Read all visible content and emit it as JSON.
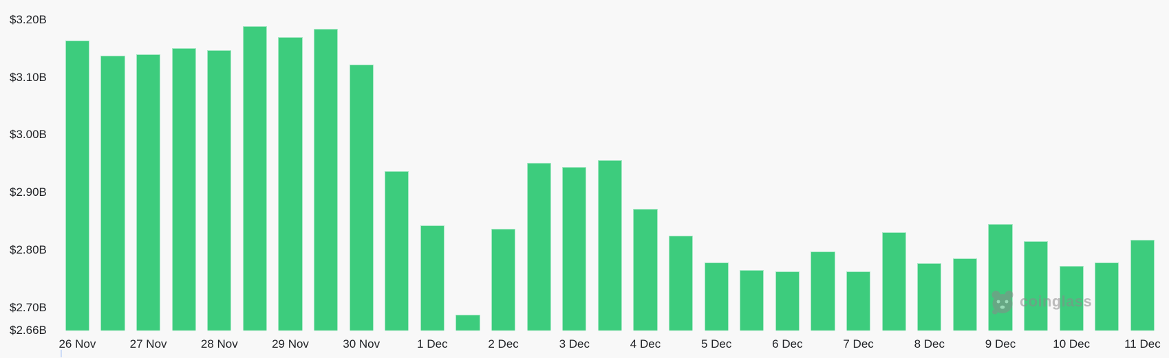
{
  "colors": {
    "background": "#f8f8f8",
    "bar_fill": "#3dcc7d",
    "bar_border": "#a9e8c6",
    "axis_text": "#202226",
    "watermark": "#8a8a8a",
    "edge_tick": "#cddcf7"
  },
  "watermark": {
    "text": "coinglass",
    "logo": "coinglass-panda-logo"
  },
  "chart_data": {
    "type": "bar",
    "unit": "USD billions",
    "bars_per_label": 2,
    "x_labels": [
      "26 Nov",
      "27 Nov",
      "28 Nov",
      "29 Nov",
      "30 Nov",
      "1 Dec",
      "2 Dec",
      "3 Dec",
      "4 Dec",
      "5 Dec",
      "6 Dec",
      "7 Dec",
      "8 Dec",
      "9 Dec",
      "10 Dec",
      "11 Dec"
    ],
    "values": [
      3.164,
      3.138,
      3.14,
      3.151,
      3.148,
      3.189,
      3.17,
      3.184,
      3.123,
      2.937,
      2.843,
      2.688,
      2.837,
      2.951,
      2.945,
      2.956,
      2.871,
      2.825,
      2.778,
      2.765,
      2.763,
      2.797,
      2.763,
      2.831,
      2.777,
      2.786,
      2.845,
      2.815,
      2.772,
      2.778,
      2.818
    ],
    "y_ticks": {
      "labels": [
        "$3.20B",
        "$3.10B",
        "$3.00B",
        "$2.90B",
        "$2.80B",
        "$2.70B",
        "$2.66B"
      ],
      "values": [
        3.2,
        3.1,
        3.0,
        2.9,
        2.8,
        2.7,
        2.66
      ]
    },
    "ylim": [
      2.66,
      3.2
    ],
    "grid": false,
    "legend": "none"
  }
}
